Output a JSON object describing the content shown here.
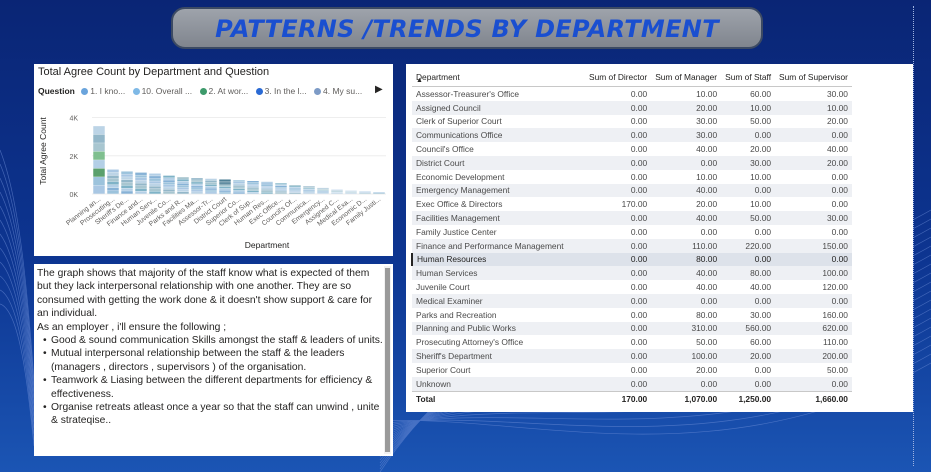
{
  "page": {
    "title": "PATTERNS /TRENDS BY DEPARTMENT"
  },
  "chart": {
    "title": "Total Agree Count by Department and Question",
    "legend_label": "Question",
    "legend_items": [
      {
        "label": "1. I kno...",
        "color": "#6aa4dc"
      },
      {
        "label": "10. Overall ...",
        "color": "#7fb9e6"
      },
      {
        "label": "2. At wor...",
        "color": "#3d9a6b"
      },
      {
        "label": "3. In the l...",
        "color": "#2a6ad4"
      },
      {
        "label": "4. My su...",
        "color": "#7d9bc6"
      }
    ]
  },
  "chart_data": {
    "type": "bar",
    "stacked": true,
    "xlabel": "Department",
    "ylabel": "Total Agree Count",
    "yticks": [
      "0K",
      "2K",
      "4K"
    ],
    "ylim": [
      0,
      4500
    ],
    "categories": [
      "Planning an...",
      "Prosecuting...",
      "Sheriff's De...",
      "Finance and...",
      "Human Serv...",
      "Juvenile Co...",
      "Parks and R...",
      "Facilities Ma...",
      "Assessor-Tr...",
      "District Court",
      "Superior Co...",
      "Clerk of Sup...",
      "Human Res...",
      "Exec Office...",
      "Council's Of...",
      "Communica...",
      "Emergency...",
      "Assigned C...",
      "Medical Exa...",
      "Economic D...",
      "Family Justi..."
    ],
    "values": [
      3550,
      1280,
      1180,
      1120,
      1070,
      960,
      880,
      830,
      800,
      760,
      720,
      680,
      640,
      560,
      470,
      400,
      320,
      240,
      180,
      130,
      90
    ]
  },
  "table": {
    "columns": [
      "Department",
      "Sum of Director",
      "Sum of Manager",
      "Sum of Staff",
      "Sum of Supervisor"
    ],
    "rows": [
      [
        "Assessor-Treasurer's Office",
        "0.00",
        "10.00",
        "60.00",
        "30.00"
      ],
      [
        "Assigned Council",
        "0.00",
        "20.00",
        "10.00",
        "10.00"
      ],
      [
        "Clerk of Superior Court",
        "0.00",
        "30.00",
        "50.00",
        "20.00"
      ],
      [
        "Communications Office",
        "0.00",
        "30.00",
        "0.00",
        "0.00"
      ],
      [
        "Council's Office",
        "0.00",
        "40.00",
        "20.00",
        "40.00"
      ],
      [
        "District Court",
        "0.00",
        "0.00",
        "30.00",
        "20.00"
      ],
      [
        "Economic Development",
        "0.00",
        "10.00",
        "10.00",
        "0.00"
      ],
      [
        "Emergency Management",
        "0.00",
        "40.00",
        "0.00",
        "0.00"
      ],
      [
        "Exec Office & Directors",
        "170.00",
        "20.00",
        "10.00",
        "0.00"
      ],
      [
        "Facilities Management",
        "0.00",
        "40.00",
        "50.00",
        "30.00"
      ],
      [
        "Family Justice Center",
        "0.00",
        "0.00",
        "0.00",
        "0.00"
      ],
      [
        "Finance and Performance Management",
        "0.00",
        "110.00",
        "220.00",
        "150.00"
      ],
      [
        "Human Resources",
        "0.00",
        "80.00",
        "0.00",
        "0.00"
      ],
      [
        "Human Services",
        "0.00",
        "40.00",
        "80.00",
        "100.00"
      ],
      [
        "Juvenile Court",
        "0.00",
        "40.00",
        "40.00",
        "120.00"
      ],
      [
        "Medical Examiner",
        "0.00",
        "0.00",
        "0.00",
        "0.00"
      ],
      [
        "Parks and Recreation",
        "0.00",
        "80.00",
        "30.00",
        "160.00"
      ],
      [
        "Planning and Public Works",
        "0.00",
        "310.00",
        "560.00",
        "620.00"
      ],
      [
        "Prosecuting Attorney's Office",
        "0.00",
        "50.00",
        "60.00",
        "110.00"
      ],
      [
        "Sheriff's Department",
        "0.00",
        "100.00",
        "20.00",
        "200.00"
      ],
      [
        "Superior Court",
        "0.00",
        "20.00",
        "0.00",
        "50.00"
      ],
      [
        "Unknown",
        "0.00",
        "0.00",
        "0.00",
        "0.00"
      ]
    ],
    "total": [
      "Total",
      "170.00",
      "1,070.00",
      "1,250.00",
      "1,660.00"
    ],
    "selected_row": "Human Resources"
  },
  "notes": {
    "intro": "The graph shows that majority of the staff know what is expected of them but they lack interpersonal relationship with one another. They are so consumed with getting the work done & it doesn't show support & care for an individual.",
    "lead": "As an employer , i'll ensure the following ;",
    "bullets": [
      "Good & sound communication Skills amongst the staff & leaders of units.",
      "Mutual interpersonal relationship between the staff & the leaders (managers , directors , supervisors ) of the organisation.",
      "Teamwork & Liasing between the different departments for efficiency & effectiveness.",
      "Organise retreats atleast once a year so that the staff can unwind , unite & strateqise.."
    ]
  }
}
